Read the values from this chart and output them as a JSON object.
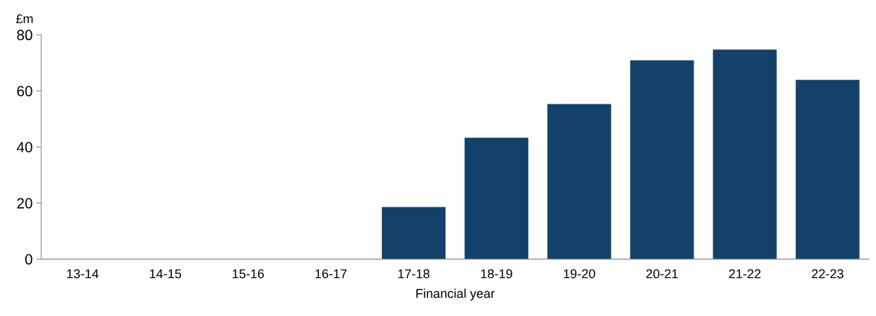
{
  "chart_data": {
    "type": "bar",
    "ylabel": "£m",
    "xlabel": "Financial year",
    "categories": [
      "13-14",
      "14-15",
      "15-16",
      "16-17",
      "17-18",
      "18-19",
      "19-20",
      "20-21",
      "21-22",
      "22-23"
    ],
    "values": [
      0,
      0,
      0,
      0,
      18.6,
      43.3,
      55.3,
      70.9,
      74.7,
      63.9
    ],
    "color": "#134169",
    "ylim": [
      0,
      80
    ],
    "yticks": [
      0,
      20,
      40,
      60,
      80
    ],
    "grid": false,
    "legend": false
  }
}
